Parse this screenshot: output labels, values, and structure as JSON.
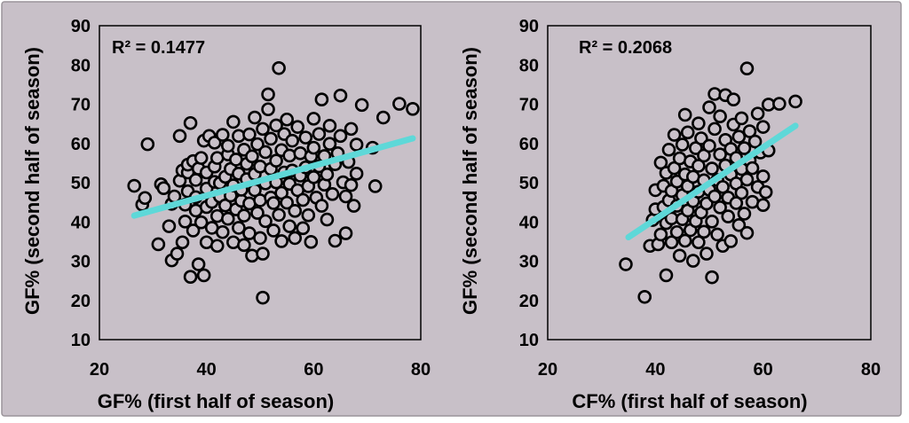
{
  "background_color": "#c8c0c8",
  "fit_line_color": "#5ed8d8",
  "marker_fill": "#c8c0c8",
  "marker_stroke": "#000000",
  "chart_data": [
    {
      "type": "scatter",
      "xlabel": "GF% (first half of season)",
      "ylabel": "GF% (second half of season)",
      "annotation": "R² = 0.1477",
      "xlim": [
        20,
        80
      ],
      "ylim": [
        10,
        90
      ],
      "xticks": [
        20,
        40,
        60,
        80
      ],
      "yticks": [
        10,
        20,
        30,
        40,
        50,
        60,
        70,
        80,
        90
      ],
      "grid": false,
      "trendline": {
        "x": [
          26.5,
          78.5
        ],
        "y": [
          41.6,
          61.3
        ]
      },
      "points": [
        [
          26.5,
          49.2
        ],
        [
          28,
          44.4
        ],
        [
          28.5,
          46.1
        ],
        [
          29,
          59.8
        ],
        [
          31,
          34.3
        ],
        [
          31.5,
          49.6
        ],
        [
          32,
          48.6
        ],
        [
          33,
          38.9
        ],
        [
          33.5,
          44.6
        ],
        [
          34,
          46.5
        ],
        [
          33.5,
          30.2
        ],
        [
          34.5,
          31.9
        ],
        [
          35,
          50.5
        ],
        [
          35,
          61.9
        ],
        [
          35.5,
          34.8
        ],
        [
          35.5,
          53.1
        ],
        [
          36,
          40.1
        ],
        [
          36,
          44.4
        ],
        [
          36.5,
          47.8
        ],
        [
          36.5,
          52.6
        ],
        [
          36.5,
          54.6
        ],
        [
          37,
          65.2
        ],
        [
          37,
          26
        ],
        [
          37.5,
          55.5
        ],
        [
          37.5,
          37.8
        ],
        [
          38,
          42.9
        ],
        [
          38,
          46.3
        ],
        [
          38,
          50.7
        ],
        [
          38.5,
          53.6
        ],
        [
          38.5,
          29.2
        ],
        [
          39,
          39.9
        ],
        [
          39,
          56.3
        ],
        [
          39.5,
          26.4
        ],
        [
          39.5,
          60.7
        ],
        [
          40,
          34.8
        ],
        [
          40,
          43.8
        ],
        [
          40,
          48.5
        ],
        [
          40,
          52.6
        ],
        [
          40.5,
          61.9
        ],
        [
          41,
          38.5
        ],
        [
          41,
          45.1
        ],
        [
          41.5,
          50.2
        ],
        [
          41.5,
          54.1
        ],
        [
          41.5,
          60.2
        ],
        [
          42,
          33.9
        ],
        [
          42,
          41.5
        ],
        [
          42,
          56.3
        ],
        [
          42.5,
          46.5
        ],
        [
          42.5,
          49.9
        ],
        [
          43,
          62.2
        ],
        [
          43,
          37.4
        ],
        [
          43.5,
          44.2
        ],
        [
          43.5,
          51.5
        ],
        [
          44,
          57.2
        ],
        [
          44,
          59.4
        ],
        [
          44,
          40.8
        ],
        [
          44.5,
          46.7
        ],
        [
          44.5,
          53.5
        ],
        [
          45,
          34.8
        ],
        [
          45,
          65.5
        ],
        [
          45,
          49.3
        ],
        [
          45.5,
          43.2
        ],
        [
          45.5,
          55.9
        ],
        [
          46,
          38.5
        ],
        [
          46,
          52.3
        ],
        [
          46,
          61.9
        ],
        [
          46.5,
          45.4
        ],
        [
          46.5,
          48.2
        ],
        [
          47,
          58.4
        ],
        [
          47,
          34.1
        ],
        [
          47,
          41.6
        ],
        [
          47.5,
          54.8
        ],
        [
          47.5,
          50.9
        ],
        [
          48,
          62.3
        ],
        [
          48,
          44.7
        ],
        [
          48,
          37.1
        ],
        [
          48.5,
          31.4
        ],
        [
          48.5,
          56.7
        ],
        [
          49,
          48.1
        ],
        [
          49,
          52.2
        ],
        [
          49,
          66.6
        ],
        [
          49.5,
          42.3
        ],
        [
          49.5,
          59.8
        ],
        [
          50,
          35.9
        ],
        [
          50,
          45.5
        ],
        [
          50,
          54.1
        ],
        [
          50.5,
          20.7
        ],
        [
          50.5,
          31.9
        ],
        [
          50.5,
          63.7
        ],
        [
          51,
          49.8
        ],
        [
          51,
          40.2
        ],
        [
          51,
          57.8
        ],
        [
          51.5,
          68.7
        ],
        [
          51.5,
          72.5
        ],
        [
          52,
          46.2
        ],
        [
          52,
          53.5
        ],
        [
          52,
          61.2
        ],
        [
          52.5,
          37.8
        ],
        [
          52.5,
          44.8
        ],
        [
          53,
          55.6
        ],
        [
          53,
          50.1
        ],
        [
          53,
          64.6
        ],
        [
          53.5,
          79.2
        ],
        [
          53.5,
          41.8
        ],
        [
          54,
          47.4
        ],
        [
          54,
          58.3
        ],
        [
          54,
          35.1
        ],
        [
          54.5,
          52.6
        ],
        [
          54.5,
          62.4
        ],
        [
          55,
          44.9
        ],
        [
          55,
          66.1
        ],
        [
          55.5,
          38.9
        ],
        [
          55.5,
          49.7
        ],
        [
          55.5,
          56.9
        ],
        [
          56,
          53.1
        ],
        [
          56,
          60.7
        ],
        [
          56.5,
          42.8
        ],
        [
          56.5,
          35.9
        ],
        [
          57,
          48.1
        ],
        [
          57,
          64.2
        ],
        [
          57.5,
          51.8
        ],
        [
          57.5,
          57.5
        ],
        [
          58,
          45.6
        ],
        [
          58,
          38.4
        ],
        [
          58.5,
          53.9
        ],
        [
          58.5,
          61.5
        ],
        [
          59,
          49.1
        ],
        [
          59,
          41.7
        ],
        [
          59.5,
          56.7
        ],
        [
          59.5,
          34.9
        ],
        [
          60,
          51.4
        ],
        [
          60,
          58.9
        ],
        [
          60,
          66.3
        ],
        [
          60.5,
          46.2
        ],
        [
          61,
          54.2
        ],
        [
          61,
          62.4
        ],
        [
          61.5,
          44.1
        ],
        [
          61.5,
          71.2
        ],
        [
          62,
          49.5
        ],
        [
          62,
          56.8
        ],
        [
          62.5,
          40.6
        ],
        [
          62.5,
          52.1
        ],
        [
          63,
          59.9
        ],
        [
          63,
          64.5
        ],
        [
          63.5,
          47.1
        ],
        [
          64,
          54.7
        ],
        [
          64,
          35.2
        ],
        [
          64.5,
          57.5
        ],
        [
          65,
          61.9
        ],
        [
          65,
          72.2
        ],
        [
          65.5,
          50.1
        ],
        [
          66,
          37.1
        ],
        [
          66,
          46.5
        ],
        [
          66.5,
          55.3
        ],
        [
          67,
          63.7
        ],
        [
          67,
          49.4
        ],
        [
          67.5,
          44.1
        ],
        [
          68,
          59.7
        ],
        [
          68,
          52.3
        ],
        [
          69,
          69.8
        ],
        [
          71,
          58.9
        ],
        [
          71.5,
          49.1
        ],
        [
          73,
          66.6
        ],
        [
          76,
          70.1
        ],
        [
          78.5,
          68.8
        ]
      ]
    },
    {
      "type": "scatter",
      "xlabel": "CF% (first half of season)",
      "ylabel": "GF% (second half of season)",
      "annotation": "R² = 0.2068",
      "xlim": [
        20,
        80
      ],
      "ylim": [
        10,
        90
      ],
      "xticks": [
        20,
        40,
        60,
        80
      ],
      "yticks": [
        10,
        20,
        30,
        40,
        50,
        60,
        70,
        80,
        90
      ],
      "grid": false,
      "trendline": {
        "x": [
          35,
          66
        ],
        "y": [
          36.1,
          64.5
        ]
      },
      "points": [
        [
          34.5,
          29.2
        ],
        [
          38,
          20.9
        ],
        [
          39,
          33.9
        ],
        [
          39.5,
          40.5
        ],
        [
          40,
          43.2
        ],
        [
          40,
          48.1
        ],
        [
          40.5,
          34.3
        ],
        [
          41,
          55.1
        ],
        [
          41,
          36.8
        ],
        [
          41.5,
          43.8
        ],
        [
          41.5,
          49.2
        ],
        [
          42,
          26.4
        ],
        [
          42,
          39.7
        ],
        [
          42,
          52.5
        ],
        [
          42.5,
          45.5
        ],
        [
          42.5,
          58.4
        ],
        [
          43,
          34.8
        ],
        [
          43,
          40.9
        ],
        [
          43,
          47.9
        ],
        [
          43.5,
          53.7
        ],
        [
          43.5,
          62.2
        ],
        [
          44,
          37.4
        ],
        [
          44,
          44.1
        ],
        [
          44,
          50.3
        ],
        [
          44.5,
          31.4
        ],
        [
          44.5,
          56.2
        ],
        [
          45,
          40.7
        ],
        [
          45,
          46.8
        ],
        [
          45,
          59.7
        ],
        [
          45.5,
          35.2
        ],
        [
          45.5,
          52.1
        ],
        [
          45.5,
          67.3
        ],
        [
          46,
          42.9
        ],
        [
          46,
          49.1
        ],
        [
          46,
          62.8
        ],
        [
          46.5,
          37.9
        ],
        [
          46.5,
          55.4
        ],
        [
          47,
          30.1
        ],
        [
          47,
          45.3
        ],
        [
          47,
          51.5
        ],
        [
          47.5,
          40.2
        ],
        [
          47.5,
          58.8
        ],
        [
          48,
          34.8
        ],
        [
          48,
          47.7
        ],
        [
          48,
          54.3
        ],
        [
          48,
          65.1
        ],
        [
          48.5,
          42.4
        ],
        [
          48.5,
          61.3
        ],
        [
          49,
          37.5
        ],
        [
          49,
          50.6
        ],
        [
          49,
          56.9
        ],
        [
          49.5,
          44.7
        ],
        [
          49.5,
          31.9
        ],
        [
          50,
          48.2
        ],
        [
          50,
          59.4
        ],
        [
          50,
          69.2
        ],
        [
          50.5,
          25.9
        ],
        [
          50.5,
          40.1
        ],
        [
          50.5,
          53.6
        ],
        [
          51,
          46.5
        ],
        [
          51,
          63.7
        ],
        [
          51,
          72.6
        ],
        [
          51.5,
          36.8
        ],
        [
          51.5,
          50.7
        ],
        [
          52,
          43.7
        ],
        [
          52,
          57.2
        ],
        [
          52,
          66.9
        ],
        [
          52.5,
          33.9
        ],
        [
          52.5,
          48.9
        ],
        [
          53,
          54.4
        ],
        [
          53,
          60.9
        ],
        [
          53,
          72.3
        ],
        [
          53.5,
          41.4
        ],
        [
          53.5,
          46.2
        ],
        [
          54,
          52.1
        ],
        [
          54,
          58.6
        ],
        [
          54,
          35.1
        ],
        [
          54.5,
          64.8
        ],
        [
          54.5,
          71.2
        ],
        [
          55,
          44.8
        ],
        [
          55,
          49.8
        ],
        [
          55,
          56.3
        ],
        [
          55.5,
          39.2
        ],
        [
          55.5,
          61.7
        ],
        [
          56,
          53.5
        ],
        [
          56,
          47.4
        ],
        [
          56,
          66.4
        ],
        [
          56.5,
          42.1
        ],
        [
          56.5,
          58.8
        ],
        [
          57,
          79.1
        ],
        [
          57,
          50.8
        ],
        [
          57,
          37.2
        ],
        [
          57.5,
          55.7
        ],
        [
          57.5,
          63.1
        ],
        [
          58,
          45.1
        ],
        [
          58,
          53.7
        ],
        [
          58.5,
          60.5
        ],
        [
          59,
          48.9
        ],
        [
          59,
          67.6
        ],
        [
          59.5,
          57.7
        ],
        [
          60,
          44.3
        ],
        [
          60,
          51.6
        ],
        [
          60,
          64.2
        ],
        [
          60.5,
          47.6
        ],
        [
          61,
          69.9
        ],
        [
          61,
          58.2
        ],
        [
          63,
          70.1
        ],
        [
          66,
          70.7
        ]
      ]
    }
  ]
}
